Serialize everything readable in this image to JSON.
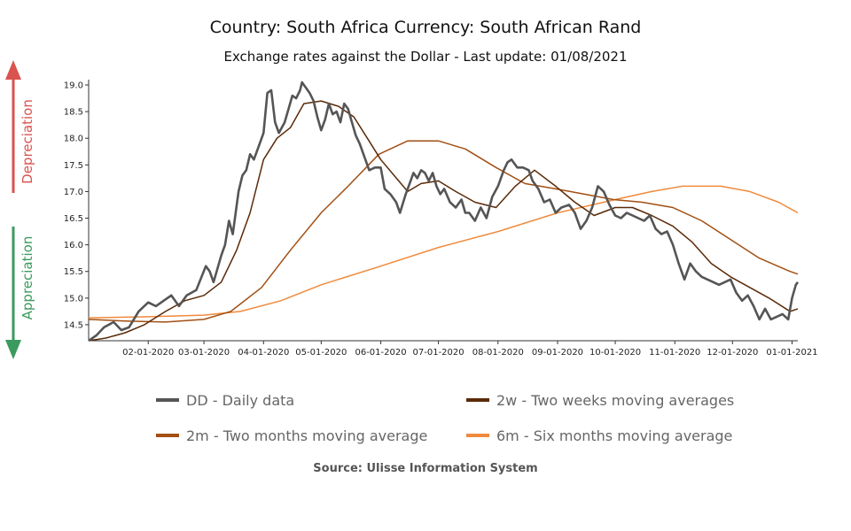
{
  "header": {
    "title": "Country: South Africa Currency: South African Rand",
    "subtitle": "Exchange rates against the Dollar - Last update: 01/08/2021"
  },
  "side_labels": {
    "depreciation": "Depreciation",
    "appreciation": "Appreciation",
    "depreciation_color": "#d9534f",
    "appreciation_color": "#3c9a5f"
  },
  "source": "Source: Ulisse Information System",
  "legend": [
    {
      "label": "DD - Daily data",
      "color": "#555555"
    },
    {
      "label": "2w - Two weeks moving averages",
      "color": "#5a2a08"
    },
    {
      "label": "2m - Two months moving average",
      "color": "#a24f12"
    },
    {
      "label": "6m - Six months moving average",
      "color": "#f08a3c"
    }
  ],
  "chart_data": {
    "type": "line",
    "x_tick_labels": [
      "02-01-2020",
      "03-01-2020",
      "04-01-2020",
      "05-01-2020",
      "06-01-2020",
      "07-01-2020",
      "08-01-2020",
      "09-01-2020",
      "10-01-2020",
      "11-01-2020",
      "12-01-2020",
      "01-01-2021"
    ],
    "y_ticks": [
      14.5,
      15.0,
      15.5,
      16.0,
      16.5,
      17.0,
      17.5,
      18.0,
      18.5,
      19.0
    ],
    "y_tick_labels": [
      "14.5",
      "15.0",
      "15.5",
      "16.0",
      "16.5",
      "17.0",
      "17.5",
      "18.0",
      "18.5",
      "19.0"
    ],
    "xlim": [
      "2020-01-01",
      "2021-01-04"
    ],
    "ylim": [
      14.2,
      19.1
    ],
    "series": [
      {
        "name": "DD - Daily data",
        "color": "#555555",
        "points": [
          [
            "2020-01-01",
            14.2
          ],
          [
            "2020-01-05",
            14.3
          ],
          [
            "2020-01-09",
            14.45
          ],
          [
            "2020-01-14",
            14.55
          ],
          [
            "2020-01-18",
            14.4
          ],
          [
            "2020-01-22",
            14.45
          ],
          [
            "2020-01-27",
            14.75
          ],
          [
            "2020-02-01",
            14.92
          ],
          [
            "2020-02-05",
            14.85
          ],
          [
            "2020-02-09",
            14.95
          ],
          [
            "2020-02-13",
            15.05
          ],
          [
            "2020-02-17",
            14.85
          ],
          [
            "2020-02-21",
            15.05
          ],
          [
            "2020-02-26",
            15.15
          ],
          [
            "2020-03-02",
            15.6
          ],
          [
            "2020-03-04",
            15.5
          ],
          [
            "2020-03-06",
            15.3
          ],
          [
            "2020-03-10",
            15.8
          ],
          [
            "2020-03-12",
            16.0
          ],
          [
            "2020-03-14",
            16.45
          ],
          [
            "2020-03-16",
            16.2
          ],
          [
            "2020-03-19",
            17.0
          ],
          [
            "2020-03-21",
            17.3
          ],
          [
            "2020-03-23",
            17.4
          ],
          [
            "2020-03-25",
            17.7
          ],
          [
            "2020-03-27",
            17.6
          ],
          [
            "2020-03-30",
            17.9
          ],
          [
            "2020-04-01",
            18.1
          ],
          [
            "2020-04-03",
            18.85
          ],
          [
            "2020-04-05",
            18.9
          ],
          [
            "2020-04-07",
            18.3
          ],
          [
            "2020-04-09",
            18.1
          ],
          [
            "2020-04-12",
            18.3
          ],
          [
            "2020-04-14",
            18.55
          ],
          [
            "2020-04-16",
            18.8
          ],
          [
            "2020-04-18",
            18.75
          ],
          [
            "2020-04-20",
            18.9
          ],
          [
            "2020-04-21",
            19.05
          ],
          [
            "2020-04-23",
            18.95
          ],
          [
            "2020-04-25",
            18.85
          ],
          [
            "2020-04-27",
            18.7
          ],
          [
            "2020-04-29",
            18.4
          ],
          [
            "2020-05-01",
            18.15
          ],
          [
            "2020-05-03",
            18.35
          ],
          [
            "2020-05-05",
            18.65
          ],
          [
            "2020-05-07",
            18.45
          ],
          [
            "2020-05-09",
            18.5
          ],
          [
            "2020-05-11",
            18.3
          ],
          [
            "2020-05-13",
            18.65
          ],
          [
            "2020-05-15",
            18.55
          ],
          [
            "2020-05-17",
            18.3
          ],
          [
            "2020-05-19",
            18.05
          ],
          [
            "2020-05-21",
            17.9
          ],
          [
            "2020-05-24",
            17.6
          ],
          [
            "2020-05-26",
            17.4
          ],
          [
            "2020-05-29",
            17.45
          ],
          [
            "2020-06-01",
            17.45
          ],
          [
            "2020-06-03",
            17.05
          ],
          [
            "2020-06-06",
            16.95
          ],
          [
            "2020-06-09",
            16.8
          ],
          [
            "2020-06-11",
            16.6
          ],
          [
            "2020-06-14",
            16.95
          ],
          [
            "2020-06-16",
            17.15
          ],
          [
            "2020-06-18",
            17.35
          ],
          [
            "2020-06-20",
            17.25
          ],
          [
            "2020-06-22",
            17.4
          ],
          [
            "2020-06-24",
            17.35
          ],
          [
            "2020-06-26",
            17.2
          ],
          [
            "2020-06-28",
            17.35
          ],
          [
            "2020-06-30",
            17.1
          ],
          [
            "2020-07-02",
            16.95
          ],
          [
            "2020-07-04",
            17.05
          ],
          [
            "2020-07-07",
            16.8
          ],
          [
            "2020-07-10",
            16.7
          ],
          [
            "2020-07-13",
            16.85
          ],
          [
            "2020-07-15",
            16.6
          ],
          [
            "2020-07-17",
            16.6
          ],
          [
            "2020-07-20",
            16.45
          ],
          [
            "2020-07-23",
            16.7
          ],
          [
            "2020-07-26",
            16.5
          ],
          [
            "2020-07-29",
            16.9
          ],
          [
            "2020-08-01",
            17.1
          ],
          [
            "2020-08-04",
            17.4
          ],
          [
            "2020-08-06",
            17.55
          ],
          [
            "2020-08-08",
            17.6
          ],
          [
            "2020-08-11",
            17.45
          ],
          [
            "2020-08-14",
            17.45
          ],
          [
            "2020-08-17",
            17.4
          ],
          [
            "2020-08-19",
            17.2
          ],
          [
            "2020-08-22",
            17.05
          ],
          [
            "2020-08-25",
            16.8
          ],
          [
            "2020-08-28",
            16.85
          ],
          [
            "2020-08-31",
            16.6
          ],
          [
            "2020-09-03",
            16.7
          ],
          [
            "2020-09-07",
            16.75
          ],
          [
            "2020-09-10",
            16.6
          ],
          [
            "2020-09-13",
            16.3
          ],
          [
            "2020-09-16",
            16.45
          ],
          [
            "2020-09-19",
            16.7
          ],
          [
            "2020-09-22",
            17.1
          ],
          [
            "2020-09-25",
            17.0
          ],
          [
            "2020-09-28",
            16.75
          ],
          [
            "2020-10-01",
            16.55
          ],
          [
            "2020-10-04",
            16.5
          ],
          [
            "2020-10-07",
            16.6
          ],
          [
            "2020-10-10",
            16.55
          ],
          [
            "2020-10-13",
            16.5
          ],
          [
            "2020-10-16",
            16.45
          ],
          [
            "2020-10-19",
            16.55
          ],
          [
            "2020-10-22",
            16.3
          ],
          [
            "2020-10-25",
            16.2
          ],
          [
            "2020-10-28",
            16.25
          ],
          [
            "2020-10-31",
            16.0
          ],
          [
            "2020-11-03",
            15.65
          ],
          [
            "2020-11-06",
            15.35
          ],
          [
            "2020-11-09",
            15.65
          ],
          [
            "2020-11-12",
            15.5
          ],
          [
            "2020-11-15",
            15.4
          ],
          [
            "2020-11-18",
            15.35
          ],
          [
            "2020-11-21",
            15.3
          ],
          [
            "2020-11-24",
            15.25
          ],
          [
            "2020-11-27",
            15.3
          ],
          [
            "2020-11-30",
            15.35
          ],
          [
            "2020-12-03",
            15.1
          ],
          [
            "2020-12-06",
            14.95
          ],
          [
            "2020-12-09",
            15.05
          ],
          [
            "2020-12-12",
            14.85
          ],
          [
            "2020-12-15",
            14.6
          ],
          [
            "2020-12-18",
            14.8
          ],
          [
            "2020-12-21",
            14.6
          ],
          [
            "2020-12-24",
            14.65
          ],
          [
            "2020-12-27",
            14.7
          ],
          [
            "2020-12-30",
            14.6
          ],
          [
            "2021-01-01",
            15.0
          ],
          [
            "2021-01-03",
            15.25
          ],
          [
            "2021-01-04",
            15.3
          ]
        ]
      },
      {
        "name": "2w - Two weeks moving averages",
        "color": "#5a2a08",
        "points": [
          [
            "2020-01-01",
            14.2
          ],
          [
            "2020-01-10",
            14.25
          ],
          [
            "2020-01-20",
            14.35
          ],
          [
            "2020-01-30",
            14.5
          ],
          [
            "2020-02-10",
            14.75
          ],
          [
            "2020-02-20",
            14.95
          ],
          [
            "2020-03-01",
            15.05
          ],
          [
            "2020-03-10",
            15.3
          ],
          [
            "2020-03-18",
            15.9
          ],
          [
            "2020-03-25",
            16.6
          ],
          [
            "2020-04-01",
            17.6
          ],
          [
            "2020-04-08",
            18.0
          ],
          [
            "2020-04-15",
            18.2
          ],
          [
            "2020-04-22",
            18.65
          ],
          [
            "2020-05-01",
            18.7
          ],
          [
            "2020-05-10",
            18.6
          ],
          [
            "2020-05-18",
            18.4
          ],
          [
            "2020-05-25",
            18.0
          ],
          [
            "2020-06-01",
            17.6
          ],
          [
            "2020-06-08",
            17.3
          ],
          [
            "2020-06-15",
            17.0
          ],
          [
            "2020-06-22",
            17.15
          ],
          [
            "2020-07-01",
            17.2
          ],
          [
            "2020-07-10",
            17.0
          ],
          [
            "2020-07-20",
            16.8
          ],
          [
            "2020-07-31",
            16.7
          ],
          [
            "2020-08-10",
            17.1
          ],
          [
            "2020-08-20",
            17.4
          ],
          [
            "2020-08-31",
            17.1
          ],
          [
            "2020-09-10",
            16.8
          ],
          [
            "2020-09-20",
            16.55
          ],
          [
            "2020-10-01",
            16.7
          ],
          [
            "2020-10-10",
            16.7
          ],
          [
            "2020-10-20",
            16.55
          ],
          [
            "2020-10-31",
            16.35
          ],
          [
            "2020-11-10",
            16.05
          ],
          [
            "2020-11-20",
            15.65
          ],
          [
            "2020-11-30",
            15.4
          ],
          [
            "2020-12-10",
            15.2
          ],
          [
            "2020-12-20",
            15.0
          ],
          [
            "2020-12-31",
            14.75
          ],
          [
            "2021-01-04",
            14.8
          ]
        ]
      },
      {
        "name": "2m - Two months moving average",
        "color": "#a24f12",
        "points": [
          [
            "2020-01-01",
            14.6
          ],
          [
            "2020-01-20",
            14.57
          ],
          [
            "2020-02-10",
            14.55
          ],
          [
            "2020-03-01",
            14.6
          ],
          [
            "2020-03-15",
            14.75
          ],
          [
            "2020-03-31",
            15.2
          ],
          [
            "2020-04-15",
            15.9
          ],
          [
            "2020-05-01",
            16.6
          ],
          [
            "2020-05-15",
            17.1
          ],
          [
            "2020-05-31",
            17.7
          ],
          [
            "2020-06-15",
            17.95
          ],
          [
            "2020-07-01",
            17.95
          ],
          [
            "2020-07-15",
            17.8
          ],
          [
            "2020-07-31",
            17.45
          ],
          [
            "2020-08-15",
            17.15
          ],
          [
            "2020-08-31",
            17.05
          ],
          [
            "2020-09-15",
            16.95
          ],
          [
            "2020-09-30",
            16.85
          ],
          [
            "2020-10-15",
            16.8
          ],
          [
            "2020-10-31",
            16.7
          ],
          [
            "2020-11-15",
            16.45
          ],
          [
            "2020-11-30",
            16.1
          ],
          [
            "2020-12-15",
            15.75
          ],
          [
            "2020-12-31",
            15.5
          ],
          [
            "2021-01-04",
            15.45
          ]
        ]
      },
      {
        "name": "6m - Six months moving average",
        "color": "#f08a3c",
        "points": [
          [
            "2020-01-01",
            14.63
          ],
          [
            "2020-02-01",
            14.65
          ],
          [
            "2020-03-01",
            14.68
          ],
          [
            "2020-03-20",
            14.75
          ],
          [
            "2020-04-10",
            14.95
          ],
          [
            "2020-05-01",
            15.25
          ],
          [
            "2020-06-01",
            15.6
          ],
          [
            "2020-07-01",
            15.95
          ],
          [
            "2020-08-01",
            16.25
          ],
          [
            "2020-09-01",
            16.6
          ],
          [
            "2020-10-01",
            16.85
          ],
          [
            "2020-10-20",
            17.0
          ],
          [
            "2020-11-05",
            17.1
          ],
          [
            "2020-11-25",
            17.1
          ],
          [
            "2020-12-10",
            17.0
          ],
          [
            "2020-12-25",
            16.8
          ],
          [
            "2021-01-04",
            16.6
          ]
        ]
      }
    ]
  }
}
